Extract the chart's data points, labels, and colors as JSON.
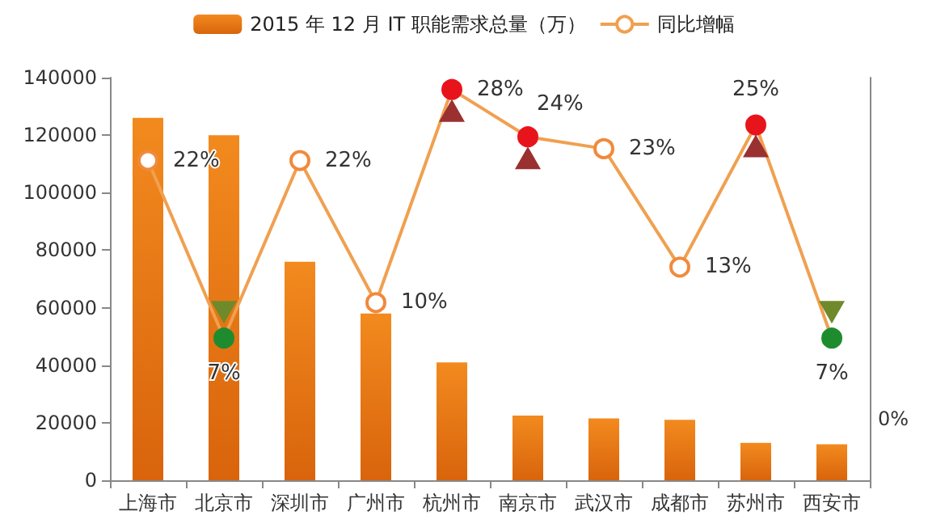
{
  "chart_data": {
    "type": "bar",
    "categories": [
      "上海市",
      "北京市",
      "深圳市",
      "广州市",
      "杭州市",
      "南京市",
      "武汉市",
      "成都市",
      "苏州市",
      "西安市"
    ],
    "series": [
      {
        "name": "2015 年 12 月 IT 职能需求总量（万）",
        "color": "#f28a1e",
        "values": [
          126000,
          120000,
          76000,
          58000,
          41000,
          22500,
          21500,
          21000,
          13000,
          12500
        ]
      },
      {
        "name": "同比增幅",
        "type": "line",
        "axis": "y2",
        "color": "#f0a050",
        "colors": [
          "#f08a3c",
          "#1e8c2e",
          "#f08a3c",
          "#f08a3c",
          "#e8141c",
          "#e8141c",
          "#f08a3c",
          "#f08a3c",
          "#e8141c",
          "#1e8c2e"
        ],
        "values": [
          22,
          7,
          22,
          10,
          28,
          24,
          23,
          13,
          25,
          7
        ],
        "value_labels": [
          "22%",
          "7%",
          "22%",
          "10%",
          "28%",
          "24%",
          "23%",
          "13%",
          "25%",
          "7%"
        ]
      }
    ],
    "ylim": [
      0,
      140000
    ],
    "yticks": [
      0,
      20000,
      40000,
      60000,
      80000,
      100000,
      120000,
      140000
    ],
    "y2lim": [
      -5,
      29
    ],
    "annotations": [
      "0%"
    ],
    "marker": "circle",
    "grid": false,
    "legend": "top"
  }
}
